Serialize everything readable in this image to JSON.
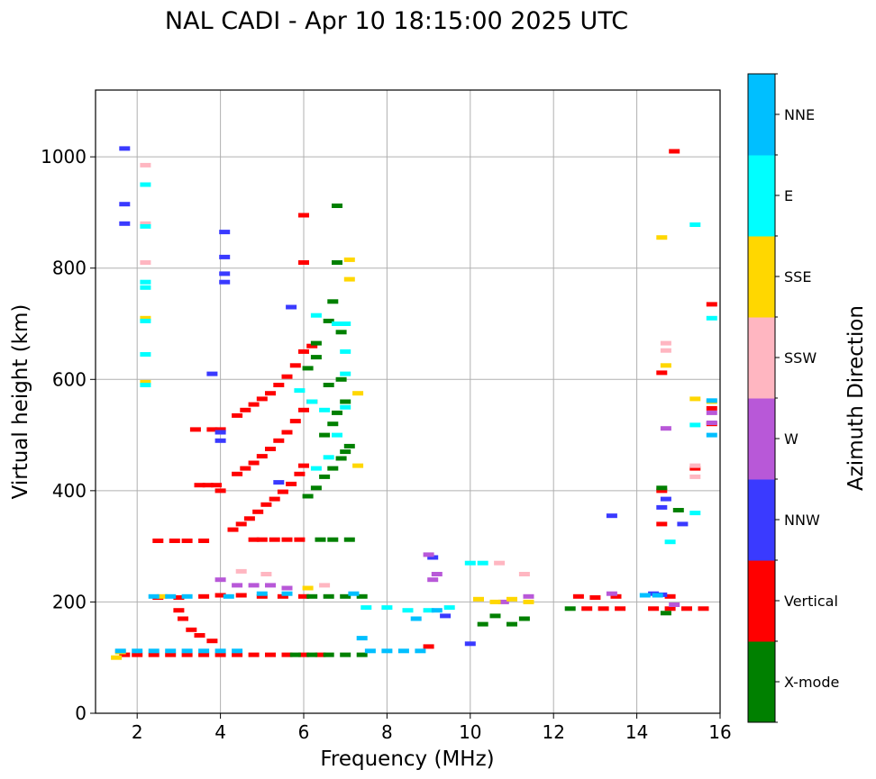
{
  "chart_data": {
    "type": "scatter",
    "title": "NAL CADI - Apr 10 18:15:00 2025 UTC",
    "xlabel": "Frequency (MHz)",
    "ylabel": "Virtual height (km)",
    "xlim": [
      1.0,
      16.0
    ],
    "ylim": [
      0,
      1120
    ],
    "xticks": [
      2,
      4,
      6,
      8,
      10,
      12,
      14,
      16
    ],
    "yticks": [
      0,
      200,
      400,
      600,
      800,
      1000
    ],
    "grid": true,
    "colorbar": {
      "label": "Azimuth Direction",
      "categories": [
        {
          "name": "X-mode",
          "color": "#008000"
        },
        {
          "name": "Vertical",
          "color": "#ff0000"
        },
        {
          "name": "NNW",
          "color": "#3a3aff"
        },
        {
          "name": "W",
          "color": "#b858d8"
        },
        {
          "name": "SSW",
          "color": "#ffb6c1"
        },
        {
          "name": "SSE",
          "color": "#ffd700"
        },
        {
          "name": "E",
          "color": "#00ffff"
        },
        {
          "name": "NNE",
          "color": "#00bfff"
        }
      ]
    },
    "series": [
      {
        "name": "Vertical",
        "points": [
          [
            1.7,
            105
          ],
          [
            2.0,
            105
          ],
          [
            2.4,
            105
          ],
          [
            2.8,
            105
          ],
          [
            3.2,
            105
          ],
          [
            3.6,
            105
          ],
          [
            4.0,
            105
          ],
          [
            4.4,
            105
          ],
          [
            4.8,
            105
          ],
          [
            5.2,
            105
          ],
          [
            5.6,
            105
          ],
          [
            6.0,
            105
          ],
          [
            6.4,
            105
          ],
          [
            2.5,
            208
          ],
          [
            3.0,
            208
          ],
          [
            3.6,
            210
          ],
          [
            4.0,
            212
          ],
          [
            4.5,
            212
          ],
          [
            5.0,
            210
          ],
          [
            5.5,
            210
          ],
          [
            6.0,
            210
          ],
          [
            2.5,
            310
          ],
          [
            2.9,
            310
          ],
          [
            3.2,
            310
          ],
          [
            3.6,
            310
          ],
          [
            4.3,
            330
          ],
          [
            4.5,
            340
          ],
          [
            4.7,
            350
          ],
          [
            4.9,
            362
          ],
          [
            5.1,
            375
          ],
          [
            5.3,
            385
          ],
          [
            5.5,
            398
          ],
          [
            5.7,
            412
          ],
          [
            5.9,
            430
          ],
          [
            6.0,
            445
          ],
          [
            4.4,
            430
          ],
          [
            4.6,
            440
          ],
          [
            4.8,
            450
          ],
          [
            5.0,
            462
          ],
          [
            5.2,
            475
          ],
          [
            5.4,
            490
          ],
          [
            5.6,
            505
          ],
          [
            5.8,
            525
          ],
          [
            6.0,
            545
          ],
          [
            6.2,
            560
          ],
          [
            4.4,
            535
          ],
          [
            4.6,
            545
          ],
          [
            4.8,
            555
          ],
          [
            5.0,
            565
          ],
          [
            5.2,
            575
          ],
          [
            5.4,
            590
          ],
          [
            5.6,
            605
          ],
          [
            5.8,
            625
          ],
          [
            6.0,
            650
          ],
          [
            6.2,
            660
          ],
          [
            3.5,
            410
          ],
          [
            3.7,
            410
          ],
          [
            3.9,
            410
          ],
          [
            4.0,
            400
          ],
          [
            3.4,
            510
          ],
          [
            3.8,
            510
          ],
          [
            4.0,
            510
          ],
          [
            4.8,
            312
          ],
          [
            5.0,
            312
          ],
          [
            5.3,
            312
          ],
          [
            5.6,
            312
          ],
          [
            5.9,
            312
          ],
          [
            3.0,
            185
          ],
          [
            3.1,
            170
          ],
          [
            3.3,
            150
          ],
          [
            3.5,
            140
          ],
          [
            3.8,
            130
          ],
          [
            9.0,
            120
          ],
          [
            12.6,
            210
          ],
          [
            13.0,
            208
          ],
          [
            13.5,
            210
          ],
          [
            12.8,
            188
          ],
          [
            13.2,
            188
          ],
          [
            13.6,
            188
          ],
          [
            14.4,
            188
          ],
          [
            14.8,
            188
          ],
          [
            15.2,
            188
          ],
          [
            15.6,
            188
          ],
          [
            14.8,
            210
          ],
          [
            14.6,
            340
          ],
          [
            14.6,
            400
          ],
          [
            14.6,
            612
          ],
          [
            14.9,
            1010
          ],
          [
            15.8,
            735
          ],
          [
            15.8,
            520
          ],
          [
            15.8,
            548
          ],
          [
            15.4,
            440
          ],
          [
            6.0,
            810
          ],
          [
            6.0,
            895
          ]
        ]
      },
      {
        "name": "X-mode",
        "points": [
          [
            5.8,
            105
          ],
          [
            6.2,
            105
          ],
          [
            6.6,
            105
          ],
          [
            7.0,
            105
          ],
          [
            7.4,
            105
          ],
          [
            6.2,
            210
          ],
          [
            6.6,
            210
          ],
          [
            7.0,
            210
          ],
          [
            7.4,
            210
          ],
          [
            6.4,
            312
          ],
          [
            6.7,
            312
          ],
          [
            7.1,
            312
          ],
          [
            6.1,
            390
          ],
          [
            6.3,
            405
          ],
          [
            6.5,
            425
          ],
          [
            6.7,
            440
          ],
          [
            6.9,
            458
          ],
          [
            7.0,
            470
          ],
          [
            7.1,
            480
          ],
          [
            6.5,
            500
          ],
          [
            6.7,
            520
          ],
          [
            6.8,
            540
          ],
          [
            7.0,
            560
          ],
          [
            6.9,
            600
          ],
          [
            6.6,
            590
          ],
          [
            6.3,
            640
          ],
          [
            6.1,
            620
          ],
          [
            6.7,
            740
          ],
          [
            6.6,
            705
          ],
          [
            6.8,
            810
          ],
          [
            6.8,
            912
          ],
          [
            6.3,
            665
          ],
          [
            6.9,
            685
          ],
          [
            10.3,
            160
          ],
          [
            10.6,
            175
          ],
          [
            11.0,
            160
          ],
          [
            11.3,
            170
          ],
          [
            12.4,
            188
          ],
          [
            14.6,
            405
          ],
          [
            15.0,
            365
          ],
          [
            14.7,
            180
          ]
        ]
      },
      {
        "name": "NNW",
        "points": [
          [
            1.7,
            1015
          ],
          [
            1.7,
            915
          ],
          [
            1.7,
            880
          ],
          [
            4.1,
            865
          ],
          [
            4.1,
            820
          ],
          [
            4.1,
            790
          ],
          [
            4.1,
            775
          ],
          [
            3.8,
            610
          ],
          [
            4.0,
            505
          ],
          [
            4.0,
            490
          ],
          [
            5.7,
            730
          ],
          [
            9.1,
            280
          ],
          [
            9.4,
            175
          ],
          [
            10.0,
            125
          ],
          [
            13.4,
            355
          ],
          [
            14.4,
            215
          ],
          [
            14.7,
            385
          ],
          [
            14.6,
            370
          ],
          [
            15.1,
            340
          ],
          [
            14.6,
            213
          ],
          [
            5.4,
            415
          ]
        ]
      },
      {
        "name": "W",
        "points": [
          [
            4.0,
            240
          ],
          [
            4.4,
            230
          ],
          [
            4.8,
            230
          ],
          [
            5.2,
            230
          ],
          [
            5.6,
            225
          ],
          [
            9.0,
            285
          ],
          [
            9.2,
            250
          ],
          [
            9.1,
            240
          ],
          [
            10.8,
            200
          ],
          [
            11.4,
            210
          ],
          [
            14.7,
            512
          ],
          [
            15.8,
            522
          ],
          [
            15.8,
            540
          ],
          [
            14.9,
            195
          ],
          [
            13.4,
            215
          ]
        ]
      },
      {
        "name": "SSW",
        "points": [
          [
            2.2,
            985
          ],
          [
            2.2,
            880
          ],
          [
            2.2,
            810
          ],
          [
            4.5,
            255
          ],
          [
            5.1,
            250
          ],
          [
            6.5,
            230
          ],
          [
            14.7,
            665
          ],
          [
            14.7,
            652
          ],
          [
            15.4,
            445
          ],
          [
            15.4,
            425
          ],
          [
            11.3,
            250
          ],
          [
            10.7,
            270
          ]
        ]
      },
      {
        "name": "SSE",
        "points": [
          [
            2.2,
            710
          ],
          [
            2.2,
            595
          ],
          [
            1.5,
            100
          ],
          [
            1.6,
            110
          ],
          [
            2.6,
            210
          ],
          [
            6.1,
            225
          ],
          [
            7.1,
            815
          ],
          [
            7.1,
            780
          ],
          [
            7.3,
            575
          ],
          [
            10.2,
            205
          ],
          [
            10.6,
            200
          ],
          [
            11.0,
            205
          ],
          [
            11.4,
            200
          ],
          [
            14.6,
            855
          ],
          [
            14.7,
            625
          ],
          [
            15.4,
            565
          ],
          [
            15.8,
            560
          ],
          [
            7.3,
            445
          ]
        ]
      },
      {
        "name": "E",
        "points": [
          [
            2.2,
            950
          ],
          [
            2.2,
            875
          ],
          [
            2.2,
            775
          ],
          [
            2.2,
            765
          ],
          [
            2.2,
            705
          ],
          [
            2.2,
            645
          ],
          [
            2.2,
            590
          ],
          [
            6.3,
            440
          ],
          [
            6.6,
            460
          ],
          [
            6.5,
            545
          ],
          [
            6.8,
            500
          ],
          [
            7.0,
            550
          ],
          [
            7.0,
            610
          ],
          [
            7.0,
            650
          ],
          [
            6.8,
            700
          ],
          [
            7.0,
            700
          ],
          [
            6.3,
            715
          ],
          [
            7.5,
            190
          ],
          [
            8.0,
            190
          ],
          [
            8.5,
            185
          ],
          [
            9.0,
            185
          ],
          [
            9.5,
            190
          ],
          [
            10.0,
            270
          ],
          [
            10.3,
            270
          ],
          [
            15.4,
            878
          ],
          [
            15.8,
            710
          ],
          [
            15.4,
            518
          ],
          [
            15.4,
            360
          ],
          [
            14.8,
            308
          ],
          [
            5.9,
            580
          ],
          [
            6.2,
            560
          ]
        ]
      },
      {
        "name": "NNE",
        "points": [
          [
            1.6,
            112
          ],
          [
            2.0,
            112
          ],
          [
            2.4,
            112
          ],
          [
            2.8,
            112
          ],
          [
            3.2,
            112
          ],
          [
            3.6,
            112
          ],
          [
            4.0,
            112
          ],
          [
            4.4,
            112
          ],
          [
            7.6,
            112
          ],
          [
            8.0,
            112
          ],
          [
            8.4,
            112
          ],
          [
            8.8,
            112
          ],
          [
            2.4,
            210
          ],
          [
            2.8,
            210
          ],
          [
            3.2,
            210
          ],
          [
            4.2,
            210
          ],
          [
            5.0,
            215
          ],
          [
            5.6,
            215
          ],
          [
            7.2,
            215
          ],
          [
            14.2,
            212
          ],
          [
            14.5,
            212
          ],
          [
            15.8,
            500
          ],
          [
            15.8,
            562
          ],
          [
            7.4,
            135
          ],
          [
            8.7,
            170
          ],
          [
            9.2,
            185
          ]
        ]
      }
    ]
  }
}
